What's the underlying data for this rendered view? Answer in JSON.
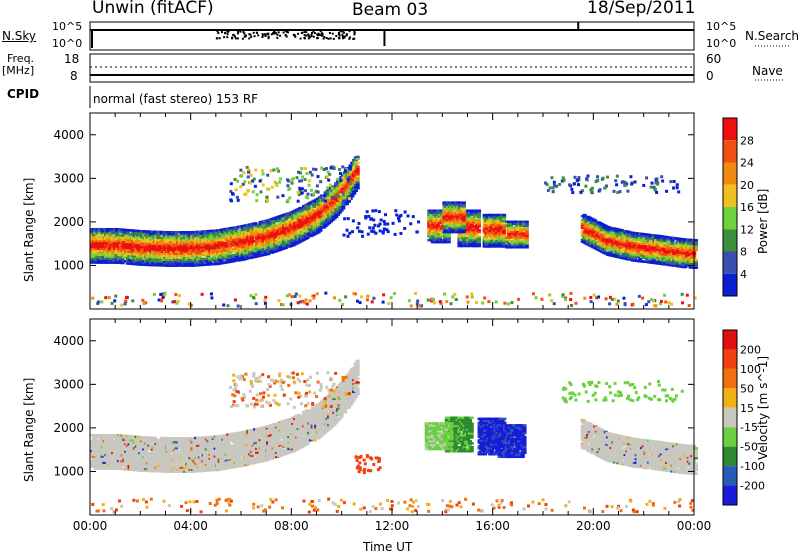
{
  "header": {
    "station": "Unwin (fitACF)",
    "beam": "Beam 03",
    "date": "18/Sep/2011"
  },
  "panels": {
    "nsky": {
      "left_label": "N.Sky",
      "left_ticks": [
        "10^5",
        "10^0"
      ],
      "right_ticks": [
        "10^5",
        "10^0"
      ],
      "right_label": "N.Search"
    },
    "freq": {
      "left_label_1": "Freq.",
      "left_label_2": "[MHz]",
      "left_ticks": [
        "18",
        "8"
      ],
      "right_ticks": [
        "60",
        "0"
      ],
      "right_label": "Nave"
    },
    "cpid": {
      "label": "CPID",
      "text": "normal (fast stereo) 153 RF"
    }
  },
  "colors": {
    "power": [
      "#0a1ed2",
      "#3a4fb0",
      "#3c8f3c",
      "#6fd23a",
      "#f0c020",
      "#f08a10",
      "#f05010",
      "#ee1010"
    ],
    "velocity": [
      "#1a1ad8",
      "#2a5ab8",
      "#2d8a30",
      "#6bd040",
      "#c8c8c0",
      "#f0b018",
      "#f07010",
      "#f04010",
      "#e01010"
    ]
  },
  "chart_data": [
    {
      "type": "heatmap",
      "name": "power",
      "ylabel": "Slant Range [km]",
      "yticks": [
        1000,
        2000,
        3000,
        4000
      ],
      "ylim": [
        0,
        4500
      ],
      "xlim": [
        0,
        24
      ],
      "xticks": [
        "00:00",
        "04:00",
        "08:00",
        "12:00",
        "16:00",
        "20:00",
        "00:00"
      ],
      "colorbar_label": "Power [dB]",
      "colorbar_ticks": [
        "28",
        "24",
        "20",
        "16",
        "12",
        "8",
        "4"
      ],
      "bands": [
        {
          "x": [
            0,
            1,
            2,
            3,
            4,
            5,
            6,
            7,
            8,
            9,
            9.7,
            10.2,
            10.6
          ],
          "y": [
            1450,
            1450,
            1400,
            1380,
            1380,
            1420,
            1520,
            1650,
            1850,
            2150,
            2500,
            2850,
            3200
          ],
          "width": 400
        },
        {
          "x": [
            19.5,
            20.5,
            21.5,
            22.5,
            23.5,
            24
          ],
          "y": [
            1850,
            1550,
            1420,
            1350,
            1270,
            1250
          ],
          "width": 320
        }
      ]
    },
    {
      "type": "heatmap",
      "name": "velocity",
      "ylabel": "Slant Range [km]",
      "yticks": [
        1000,
        2000,
        3000,
        4000
      ],
      "ylim": [
        0,
        4500
      ],
      "xlim": [
        0,
        24
      ],
      "xticks": [
        "00:00",
        "04:00",
        "08:00",
        "12:00",
        "16:00",
        "20:00",
        "00:00"
      ],
      "xlabel": "Time UT",
      "colorbar_label": "Velocity [m s^-1]",
      "colorbar_ticks": [
        "200",
        "100",
        "50",
        "15",
        "-15",
        "-50",
        "-100",
        "-200"
      ]
    }
  ]
}
